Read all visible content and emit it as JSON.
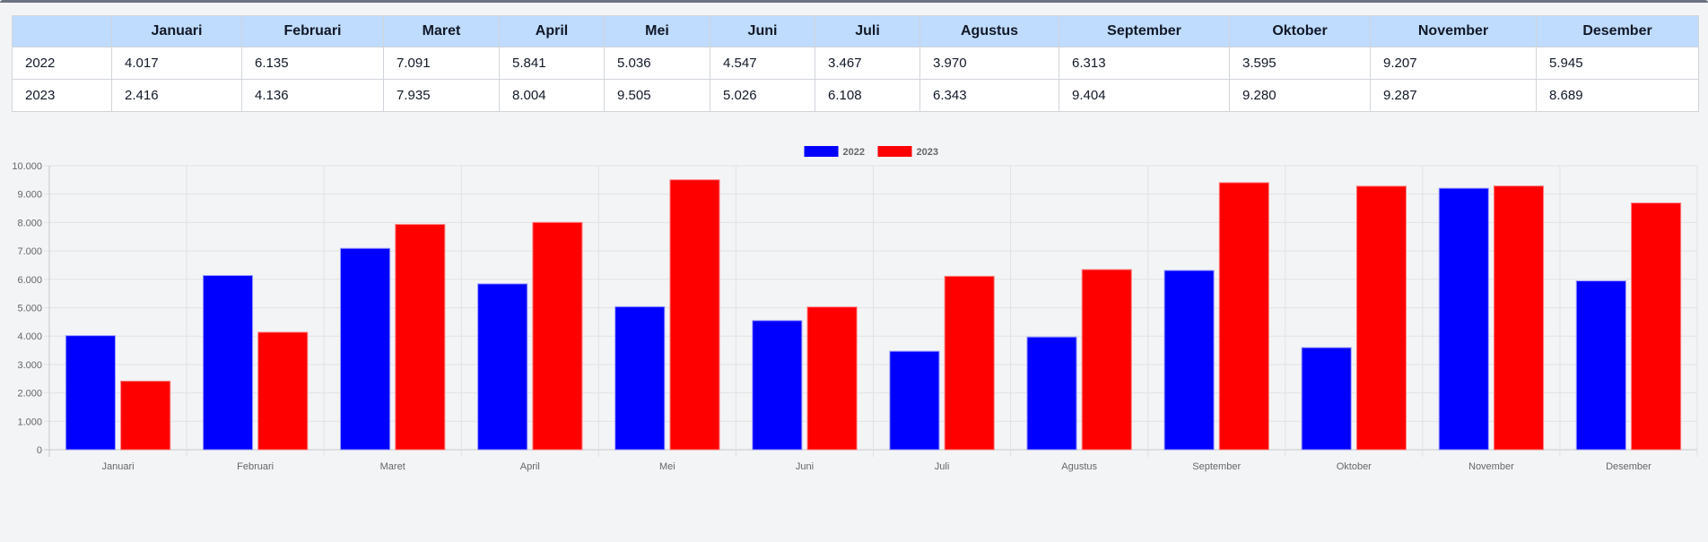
{
  "table": {
    "corner": "",
    "headers": [
      "Januari",
      "Februari",
      "Maret",
      "April",
      "Mei",
      "Juni",
      "Juli",
      "Agustus",
      "September",
      "Oktober",
      "November",
      "Desember"
    ],
    "rows": [
      {
        "label": "2022",
        "cells": [
          "4.017",
          "6.135",
          "7.091",
          "5.841",
          "5.036",
          "4.547",
          "3.467",
          "3.970",
          "6.313",
          "3.595",
          "9.207",
          "5.945"
        ]
      },
      {
        "label": "2023",
        "cells": [
          "2.416",
          "4.136",
          "7.935",
          "8.004",
          "9.505",
          "5.026",
          "6.108",
          "6.343",
          "9.404",
          "9.280",
          "9.287",
          "8.689"
        ]
      }
    ]
  },
  "chart_data": {
    "type": "bar",
    "categories": [
      "Januari",
      "Februari",
      "Maret",
      "April",
      "Mei",
      "Juni",
      "Juli",
      "Agustus",
      "September",
      "Oktober",
      "November",
      "Desember"
    ],
    "series": [
      {
        "name": "2022",
        "color": "#0000ff",
        "values": [
          4017,
          6135,
          7091,
          5841,
          5036,
          4547,
          3467,
          3970,
          6313,
          3595,
          9207,
          5945
        ]
      },
      {
        "name": "2023",
        "color": "#ff0000",
        "values": [
          2416,
          4136,
          7935,
          8004,
          9505,
          5026,
          6108,
          6343,
          9404,
          9280,
          9287,
          8689
        ]
      }
    ],
    "ylim": [
      0,
      10000
    ],
    "yticks": [
      "0",
      "1.000",
      "2.000",
      "3.000",
      "4.000",
      "5.000",
      "6.000",
      "7.000",
      "8.000",
      "9.000",
      "10.000"
    ],
    "grid": true,
    "legend_position": "top-center",
    "title": "",
    "xlabel": "",
    "ylabel": ""
  }
}
